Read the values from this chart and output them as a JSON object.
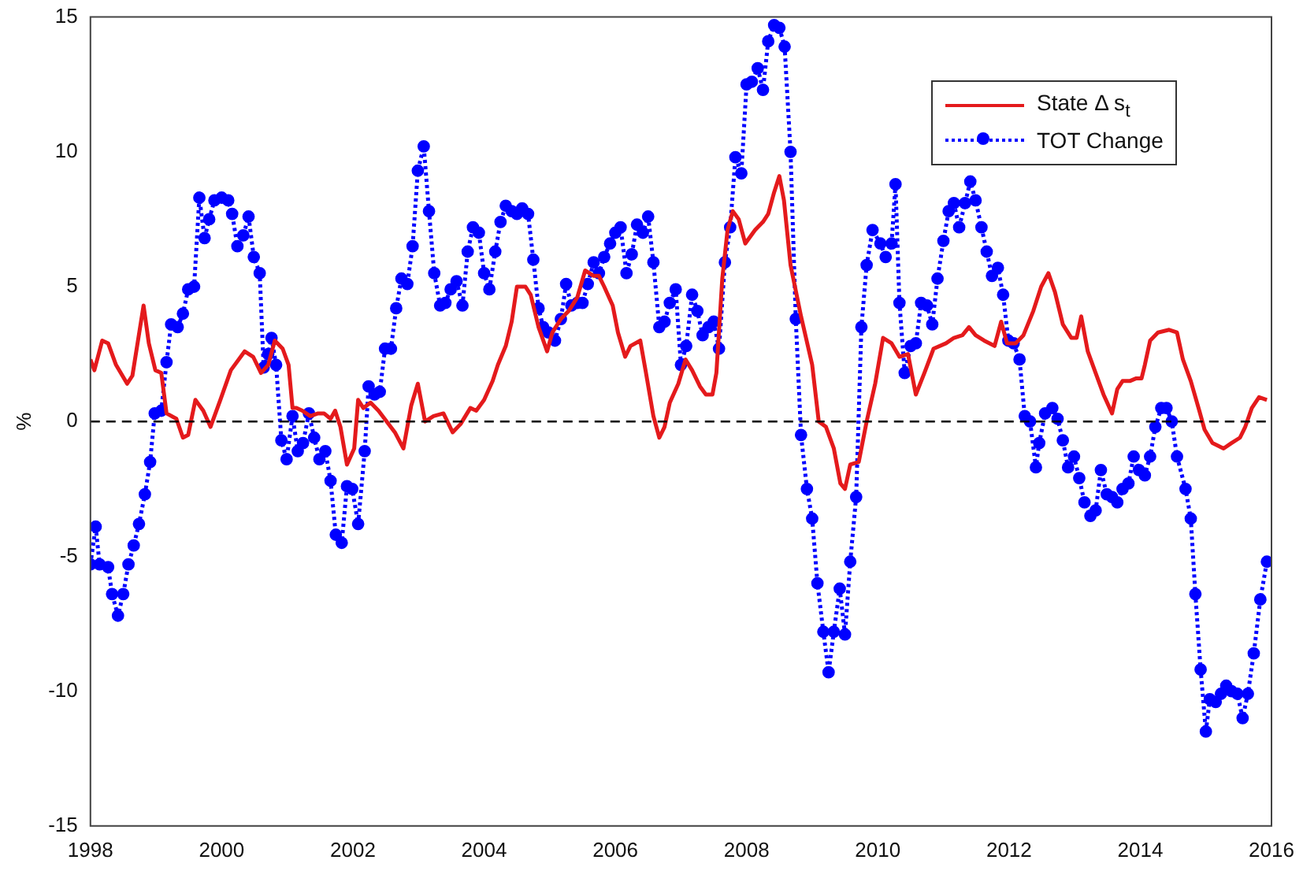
{
  "chart_data": {
    "type": "line",
    "ylabel": "%",
    "xlim": [
      1998,
      2016
    ],
    "xticks": [
      1998,
      2000,
      2002,
      2004,
      2006,
      2008,
      2010,
      2012,
      2014,
      2016
    ],
    "ylim": [
      -15,
      15
    ],
    "yticks": [
      -15,
      -10,
      -5,
      0,
      5,
      10,
      15
    ],
    "legend": "top right",
    "ref_lines": [
      {
        "axis": "y",
        "value": 0,
        "color": "#000000",
        "line_style": "dashed"
      }
    ],
    "series": [
      {
        "name": "State Δ s$_{t}$",
        "color": "#e41a1c",
        "marker": "none",
        "line_style": "solid",
        "x": [
          1998.0,
          1998.06,
          1998.18,
          1998.27,
          1998.39,
          1998.56,
          1998.64,
          1998.81,
          1998.89,
          1998.99,
          1999.08,
          1999.16,
          1999.31,
          1999.41,
          1999.49,
          1999.6,
          1999.72,
          1999.83,
          1999.98,
          2000.14,
          2000.35,
          2000.48,
          2000.6,
          2000.71,
          2000.81,
          2000.93,
          2001.02,
          2001.08,
          2001.14,
          2001.23,
          2001.35,
          2001.47,
          2001.56,
          2001.66,
          2001.73,
          2001.81,
          2001.91,
          2002.02,
          2002.08,
          2002.16,
          2002.27,
          2002.39,
          2002.64,
          2002.77,
          2002.89,
          2002.99,
          2003.1,
          2003.23,
          2003.38,
          2003.52,
          2003.64,
          2003.79,
          2003.88,
          2004.0,
          2004.13,
          2004.21,
          2004.33,
          2004.42,
          2004.5,
          2004.63,
          2004.71,
          2004.83,
          2004.96,
          2005.04,
          2005.17,
          2005.29,
          2005.42,
          2005.54,
          2005.67,
          2005.75,
          2005.83,
          2005.96,
          2006.04,
          2006.15,
          2006.23,
          2006.38,
          2006.46,
          2006.58,
          2006.67,
          2006.75,
          2006.83,
          2006.96,
          2007.07,
          2007.17,
          2007.29,
          2007.38,
          2007.48,
          2007.54,
          2007.63,
          2007.71,
          2007.79,
          2007.88,
          2007.98,
          2008.13,
          2008.25,
          2008.33,
          2008.42,
          2008.5,
          2008.57,
          2008.67,
          2008.83,
          2009.0,
          2009.1,
          2009.21,
          2009.33,
          2009.43,
          2009.5,
          2009.58,
          2009.71,
          2009.83,
          2009.96,
          2010.08,
          2010.21,
          2010.33,
          2010.46,
          2010.58,
          2010.71,
          2010.85,
          2011.04,
          2011.16,
          2011.29,
          2011.39,
          2011.49,
          2011.62,
          2011.78,
          2011.88,
          2011.97,
          2012.1,
          2012.22,
          2012.37,
          2012.49,
          2012.6,
          2012.7,
          2012.82,
          2012.95,
          2013.03,
          2013.1,
          2013.2,
          2013.32,
          2013.44,
          2013.57,
          2013.65,
          2013.73,
          2013.84,
          2013.94,
          2014.02,
          2014.07,
          2014.15,
          2014.27,
          2014.44,
          2014.56,
          2014.65,
          2014.77,
          2014.9,
          2014.98,
          2015.1,
          2015.27,
          2015.39,
          2015.52,
          2015.6,
          2015.7,
          2015.81,
          2015.93
        ],
        "values": [
          2.3,
          1.9,
          3.0,
          2.9,
          2.1,
          1.4,
          1.7,
          4.3,
          2.9,
          1.9,
          1.8,
          0.3,
          0.1,
          -0.6,
          -0.5,
          0.8,
          0.4,
          -0.2,
          0.8,
          1.9,
          2.6,
          2.4,
          1.8,
          2.1,
          3.0,
          2.7,
          2.1,
          0.5,
          0.5,
          0.4,
          0.2,
          0.3,
          0.3,
          0.1,
          0.4,
          -0.2,
          -1.6,
          -1.0,
          0.8,
          0.5,
          0.7,
          0.4,
          -0.4,
          -1.0,
          0.6,
          1.4,
          0.0,
          0.2,
          0.3,
          -0.4,
          -0.1,
          0.5,
          0.4,
          0.8,
          1.5,
          2.1,
          2.8,
          3.7,
          5.0,
          5.0,
          4.7,
          3.5,
          2.6,
          3.3,
          3.8,
          4.1,
          4.6,
          5.6,
          5.4,
          5.4,
          5.0,
          4.3,
          3.3,
          2.4,
          2.8,
          3.0,
          1.9,
          0.2,
          -0.6,
          -0.2,
          0.7,
          1.4,
          2.3,
          1.9,
          1.3,
          1.0,
          1.0,
          1.8,
          5.3,
          7.1,
          7.8,
          7.5,
          6.6,
          7.1,
          7.4,
          7.7,
          8.5,
          9.1,
          8.2,
          5.8,
          3.9,
          2.1,
          0.0,
          -0.2,
          -1.0,
          -2.3,
          -2.5,
          -1.6,
          -1.5,
          0.0,
          1.4,
          3.1,
          2.9,
          2.4,
          2.5,
          1.0,
          1.8,
          2.7,
          2.9,
          3.1,
          3.2,
          3.5,
          3.2,
          3.0,
          2.8,
          3.7,
          2.9,
          2.9,
          3.2,
          4.1,
          5.0,
          5.5,
          4.8,
          3.6,
          3.1,
          3.1,
          3.9,
          2.6,
          1.8,
          1.0,
          0.3,
          1.2,
          1.5,
          1.5,
          1.6,
          1.6,
          2.1,
          3.0,
          3.3,
          3.4,
          3.3,
          2.3,
          1.5,
          0.4,
          -0.3,
          -0.8,
          -1.0,
          -0.8,
          -0.6,
          -0.2,
          0.5,
          0.9,
          0.8
        ]
      },
      {
        "name": "TOT Change",
        "color": "#0000ff",
        "marker": "circle",
        "line_style": "dotted",
        "x": [
          1998.0,
          1998.08,
          1998.14,
          1998.27,
          1998.33,
          1998.42,
          1998.5,
          1998.58,
          1998.66,
          1998.74,
          1998.83,
          1998.91,
          1998.98,
          1999.08,
          1999.16,
          1999.23,
          1999.33,
          1999.41,
          1999.49,
          1999.58,
          1999.66,
          1999.74,
          1999.81,
          1999.89,
          2000.0,
          2000.1,
          2000.16,
          2000.24,
          2000.33,
          2000.41,
          2000.49,
          2000.58,
          2000.64,
          2000.71,
          2000.76,
          2000.83,
          2000.91,
          2000.99,
          2001.08,
          2001.16,
          2001.24,
          2001.33,
          2001.41,
          2001.49,
          2001.58,
          2001.66,
          2001.74,
          2001.83,
          2001.91,
          2001.99,
          2002.08,
          2002.18,
          2002.24,
          2002.33,
          2002.41,
          2002.49,
          2002.58,
          2002.66,
          2002.74,
          2002.83,
          2002.91,
          2002.99,
          2003.08,
          2003.16,
          2003.24,
          2003.33,
          2003.41,
          2003.49,
          2003.58,
          2003.67,
          2003.75,
          2003.83,
          2003.92,
          2004.0,
          2004.08,
          2004.17,
          2004.25,
          2004.33,
          2004.42,
          2004.5,
          2004.58,
          2004.67,
          2004.75,
          2004.83,
          2004.9,
          2004.98,
          2005.08,
          2005.17,
          2005.25,
          2005.33,
          2005.42,
          2005.5,
          2005.58,
          2005.67,
          2005.75,
          2005.83,
          2005.92,
          2006.0,
          2006.08,
          2006.17,
          2006.25,
          2006.33,
          2006.42,
          2006.5,
          2006.58,
          2006.67,
          2006.75,
          2006.83,
          2006.92,
          2007.0,
          2007.08,
          2007.17,
          2007.25,
          2007.33,
          2007.42,
          2007.5,
          2007.58,
          2007.67,
          2007.75,
          2007.83,
          2007.92,
          2008.0,
          2008.08,
          2008.17,
          2008.25,
          2008.33,
          2008.42,
          2008.5,
          2008.58,
          2008.67,
          2008.75,
          2008.83,
          2008.92,
          2009.0,
          2009.08,
          2009.17,
          2009.25,
          2009.33,
          2009.42,
          2009.5,
          2009.58,
          2009.67,
          2009.75,
          2009.83,
          2009.92,
          2010.04,
          2010.12,
          2010.21,
          2010.27,
          2010.33,
          2010.41,
          2010.5,
          2010.58,
          2010.66,
          2010.75,
          2010.83,
          2010.91,
          2011.0,
          2011.08,
          2011.16,
          2011.24,
          2011.33,
          2011.41,
          2011.49,
          2011.58,
          2011.66,
          2011.74,
          2011.83,
          2011.91,
          2011.99,
          2012.07,
          2012.16,
          2012.24,
          2012.32,
          2012.41,
          2012.46,
          2012.55,
          2012.66,
          2012.74,
          2012.82,
          2012.9,
          2012.99,
          2013.07,
          2013.15,
          2013.24,
          2013.32,
          2013.4,
          2013.49,
          2013.57,
          2013.65,
          2013.73,
          2013.82,
          2013.9,
          2013.98,
          2014.07,
          2014.15,
          2014.23,
          2014.32,
          2014.4,
          2014.48,
          2014.56,
          2014.69,
          2014.77,
          2014.84,
          2014.92,
          2015.0,
          2015.06,
          2015.15,
          2015.23,
          2015.31,
          2015.39,
          2015.48,
          2015.56,
          2015.64,
          2015.73,
          2015.83,
          2015.93
        ],
        "values": [
          -5.3,
          -3.9,
          -5.3,
          -5.4,
          -6.4,
          -7.2,
          -6.4,
          -5.3,
          -4.6,
          -3.8,
          -2.7,
          -1.5,
          0.3,
          0.4,
          2.2,
          3.6,
          3.5,
          4.0,
          4.9,
          5.0,
          8.3,
          6.8,
          7.5,
          8.2,
          8.3,
          8.2,
          7.7,
          6.5,
          6.9,
          7.6,
          6.1,
          5.5,
          2.0,
          2.5,
          3.1,
          2.1,
          -0.7,
          -1.4,
          0.2,
          -1.1,
          -0.8,
          0.3,
          -0.6,
          -1.4,
          -1.1,
          -2.2,
          -4.2,
          -4.5,
          -2.4,
          -2.5,
          -3.8,
          -1.1,
          1.3,
          1.0,
          1.1,
          2.7,
          2.7,
          4.2,
          5.3,
          5.1,
          6.5,
          9.3,
          10.2,
          7.8,
          5.5,
          4.3,
          4.4,
          4.9,
          5.2,
          4.3,
          6.3,
          7.2,
          7.0,
          5.5,
          4.9,
          6.3,
          7.4,
          8.0,
          7.8,
          7.7,
          7.9,
          7.7,
          6.0,
          4.2,
          3.5,
          3.3,
          3.0,
          3.8,
          5.1,
          4.3,
          4.4,
          4.4,
          5.1,
          5.9,
          5.5,
          6.1,
          6.6,
          7.0,
          7.2,
          5.5,
          6.2,
          7.3,
          7.0,
          7.6,
          5.9,
          3.5,
          3.7,
          4.4,
          4.9,
          2.1,
          2.8,
          4.7,
          4.1,
          3.2,
          3.5,
          3.7,
          2.7,
          5.9,
          7.2,
          9.8,
          9.2,
          12.5,
          12.6,
          13.1,
          12.3,
          14.1,
          14.7,
          14.6,
          13.9,
          10.0,
          3.8,
          -0.5,
          -2.5,
          -3.6,
          -6.0,
          -7.8,
          -9.3,
          -7.8,
          -6.2,
          -7.9,
          -5.2,
          -2.8,
          3.5,
          5.8,
          7.1,
          6.6,
          6.1,
          6.6,
          8.8,
          4.4,
          1.8,
          2.8,
          2.9,
          4.4,
          4.3,
          3.6,
          5.3,
          6.7,
          7.8,
          8.1,
          7.2,
          8.1,
          8.9,
          8.2,
          7.2,
          6.3,
          5.4,
          5.7,
          4.7,
          3.0,
          2.9,
          2.3,
          0.2,
          0.0,
          -1.7,
          -0.8,
          0.3,
          0.5,
          0.1,
          -0.7,
          -1.7,
          -1.3,
          -2.1,
          -3.0,
          -3.5,
          -3.3,
          -1.8,
          -2.7,
          -2.8,
          -3.0,
          -2.5,
          -2.3,
          -1.3,
          -1.8,
          -2.0,
          -1.3,
          -0.2,
          0.5,
          0.5,
          0.0,
          -1.3,
          -2.5,
          -3.6,
          -6.4,
          -9.2,
          -11.5,
          -10.3,
          -10.4,
          -10.1,
          -9.8,
          -10.0,
          -10.1,
          -11.0,
          -10.1,
          -8.6,
          -6.6,
          -5.2
        ]
      }
    ]
  }
}
